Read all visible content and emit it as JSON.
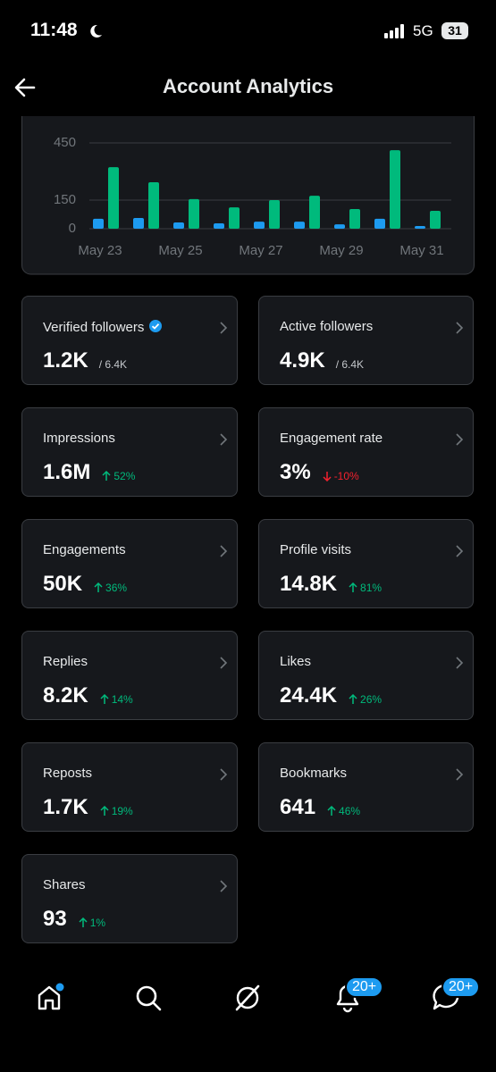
{
  "status_bar": {
    "time": "11:48",
    "network": "5G",
    "battery": "31"
  },
  "header": {
    "title": "Account Analytics"
  },
  "chart_data": {
    "type": "bar",
    "categories": [
      "May 23",
      null,
      "May 25",
      null,
      "May 27",
      null,
      "May 29",
      null,
      "May 31"
    ],
    "series": [
      {
        "color": "#1d9bf0",
        "values": [
          52,
          56,
          33,
          28,
          37,
          37,
          23,
          52,
          14
        ]
      },
      {
        "color": "#00ba7c",
        "values": [
          323,
          244,
          155,
          112,
          150,
          173,
          103,
          412,
          94
        ]
      }
    ],
    "ylim": [
      0,
      450
    ],
    "yticks": [
      0,
      150,
      450
    ],
    "grid": true
  },
  "cards": [
    {
      "label": "Verified followers",
      "value": "1.2K",
      "total": "/ 6.4K",
      "verified": true
    },
    {
      "label": "Active followers",
      "value": "4.9K",
      "total": "/ 6.4K"
    },
    {
      "label": "Impressions",
      "value": "1.6M",
      "change": "52%",
      "direction": "up"
    },
    {
      "label": "Engagement rate",
      "value": "3%",
      "change": "-10%",
      "direction": "down"
    },
    {
      "label": "Engagements",
      "value": "50K",
      "change": "36%",
      "direction": "up"
    },
    {
      "label": "Profile visits",
      "value": "14.8K",
      "change": "81%",
      "direction": "up"
    },
    {
      "label": "Replies",
      "value": "8.2K",
      "change": "14%",
      "direction": "up"
    },
    {
      "label": "Likes",
      "value": "24.4K",
      "change": "26%",
      "direction": "up"
    },
    {
      "label": "Reposts",
      "value": "1.7K",
      "change": "19%",
      "direction": "up"
    },
    {
      "label": "Bookmarks",
      "value": "641",
      "change": "46%",
      "direction": "up"
    },
    {
      "label": "Shares",
      "value": "93",
      "change": "1%",
      "direction": "up"
    }
  ],
  "nav": {
    "badges": [
      "20+",
      "20+"
    ]
  }
}
